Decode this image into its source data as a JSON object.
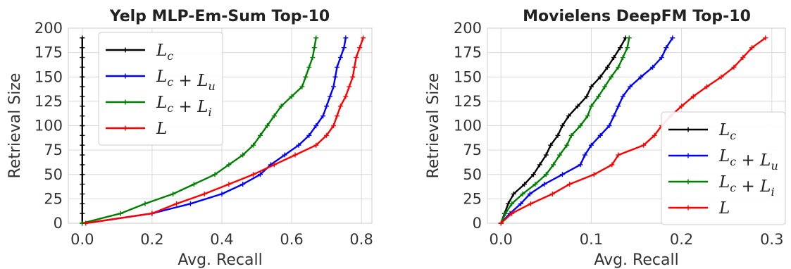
{
  "chart_data": [
    {
      "type": "line",
      "title": "Yelp MLP-Em-Sum Top-10",
      "xlabel": "Avg. Recall",
      "ylabel": "Retrieval Size",
      "xlim": [
        -0.04,
        0.83
      ],
      "ylim": [
        0,
        200
      ],
      "xticks": [
        "0.0",
        "0.2",
        "0.4",
        "0.6",
        "0.8"
      ],
      "yticks": [
        "0",
        "25",
        "50",
        "75",
        "100",
        "125",
        "150",
        "175",
        "200"
      ],
      "grid": true,
      "legend_position": "top-left",
      "series": [
        {
          "name": "L_c",
          "legend_label": "Lc",
          "color": "#000000",
          "x": [
            0.0,
            0.0,
            0.0,
            0.0,
            0.0,
            0.0,
            0.0,
            0.0,
            0.0,
            0.0,
            0.0,
            0.0,
            0.0,
            0.0,
            0.0,
            0.0,
            0.0,
            0.0,
            0.0,
            0.0
          ],
          "y": [
            0,
            10,
            20,
            30,
            40,
            50,
            60,
            70,
            80,
            90,
            100,
            110,
            120,
            130,
            140,
            150,
            160,
            170,
            180,
            190
          ]
        },
        {
          "name": "L_c + L_u",
          "legend_label": "Lc + Lu",
          "color": "#0000ff",
          "x": [
            0.01,
            0.2,
            0.31,
            0.4,
            0.46,
            0.51,
            0.54,
            0.58,
            0.62,
            0.65,
            0.67,
            0.69,
            0.7,
            0.71,
            0.72,
            0.725,
            0.73,
            0.74,
            0.75,
            0.755
          ],
          "y": [
            0,
            10,
            20,
            30,
            40,
            50,
            60,
            70,
            80,
            90,
            100,
            110,
            120,
            130,
            140,
            150,
            160,
            170,
            180,
            190
          ]
        },
        {
          "name": "L_c + L_i",
          "legend_label": "Lc + Li",
          "color": "#008000",
          "x": [
            0.0,
            0.11,
            0.18,
            0.26,
            0.32,
            0.38,
            0.42,
            0.46,
            0.49,
            0.51,
            0.53,
            0.55,
            0.57,
            0.6,
            0.63,
            0.64,
            0.65,
            0.66,
            0.665,
            0.67
          ],
          "y": [
            0,
            10,
            20,
            30,
            40,
            50,
            60,
            70,
            80,
            90,
            100,
            110,
            120,
            130,
            140,
            150,
            160,
            170,
            180,
            190
          ]
        },
        {
          "name": "L",
          "legend_label": "L",
          "color": "#ff0000",
          "x": [
            0.01,
            0.2,
            0.27,
            0.35,
            0.42,
            0.49,
            0.55,
            0.61,
            0.67,
            0.7,
            0.72,
            0.73,
            0.74,
            0.755,
            0.765,
            0.775,
            0.78,
            0.785,
            0.795,
            0.805
          ],
          "y": [
            0,
            10,
            20,
            30,
            40,
            50,
            60,
            70,
            80,
            90,
            100,
            110,
            120,
            130,
            140,
            150,
            160,
            170,
            180,
            190
          ]
        }
      ]
    },
    {
      "type": "line",
      "title": "Movielens DeepFM Top-10",
      "xlabel": "Avg. Recall",
      "ylabel": "Retrieval Size",
      "xlim": [
        -0.015,
        0.315
      ],
      "ylim": [
        0,
        200
      ],
      "xticks": [
        "0.0",
        "0.1",
        "0.2",
        "0.3"
      ],
      "yticks": [
        "0",
        "25",
        "50",
        "75",
        "100",
        "125",
        "150",
        "175",
        "200"
      ],
      "grid": true,
      "legend_position": "lower-right",
      "series": [
        {
          "name": "L_c",
          "legend_label": "Lc",
          "color": "#000000",
          "x": [
            0.0,
            0.004,
            0.008,
            0.014,
            0.026,
            0.036,
            0.043,
            0.05,
            0.055,
            0.063,
            0.068,
            0.075,
            0.085,
            0.095,
            0.1,
            0.11,
            0.118,
            0.125,
            0.132,
            0.138
          ],
          "y": [
            0,
            10,
            20,
            30,
            40,
            50,
            60,
            70,
            80,
            90,
            100,
            110,
            120,
            130,
            140,
            150,
            160,
            170,
            180,
            190
          ]
        },
        {
          "name": "L_c + L_u",
          "legend_label": "Lc + Lu",
          "color": "#0000ff",
          "x": [
            0.0,
            0.01,
            0.022,
            0.032,
            0.048,
            0.068,
            0.088,
            0.093,
            0.1,
            0.11,
            0.12,
            0.125,
            0.13,
            0.135,
            0.143,
            0.155,
            0.168,
            0.178,
            0.183,
            0.19
          ],
          "y": [
            0,
            10,
            20,
            30,
            40,
            50,
            60,
            70,
            80,
            90,
            100,
            110,
            120,
            130,
            140,
            150,
            160,
            170,
            180,
            190
          ]
        },
        {
          "name": "L_c + L_i",
          "legend_label": "Lc + Li",
          "color": "#008000",
          "x": [
            0.0,
            0.005,
            0.012,
            0.024,
            0.038,
            0.05,
            0.058,
            0.065,
            0.073,
            0.078,
            0.088,
            0.096,
            0.1,
            0.108,
            0.115,
            0.122,
            0.13,
            0.135,
            0.14,
            0.142
          ],
          "y": [
            0,
            10,
            20,
            30,
            40,
            50,
            60,
            70,
            80,
            90,
            100,
            110,
            120,
            130,
            140,
            150,
            160,
            170,
            180,
            190
          ]
        },
        {
          "name": "L",
          "legend_label": "L",
          "color": "#ff0000",
          "x": [
            0.0,
            0.012,
            0.033,
            0.057,
            0.076,
            0.103,
            0.123,
            0.13,
            0.158,
            0.17,
            0.178,
            0.188,
            0.2,
            0.213,
            0.228,
            0.244,
            0.258,
            0.268,
            0.278,
            0.293
          ],
          "y": [
            0,
            10,
            20,
            30,
            40,
            50,
            60,
            70,
            80,
            90,
            100,
            110,
            120,
            130,
            140,
            150,
            160,
            170,
            180,
            190
          ]
        }
      ]
    }
  ]
}
